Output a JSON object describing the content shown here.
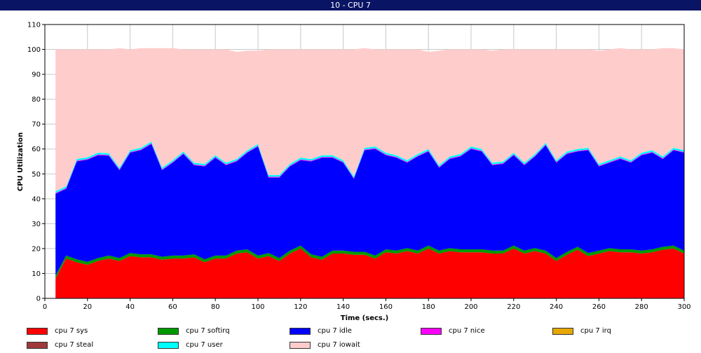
{
  "window": {
    "title": "10 - CPU 7"
  },
  "chart_data": {
    "type": "area",
    "stacked": true,
    "xlabel": "Time (secs.)",
    "ylabel": "CPU Utilization",
    "xlim": [
      0,
      300
    ],
    "ylim": [
      0,
      110
    ],
    "xticks": [
      0,
      20,
      40,
      60,
      80,
      100,
      120,
      140,
      160,
      180,
      200,
      220,
      240,
      260,
      280,
      300
    ],
    "yticks": [
      0,
      10,
      20,
      30,
      40,
      50,
      60,
      70,
      80,
      90,
      100,
      110
    ],
    "grid": true,
    "legend_position": "bottom",
    "x": [
      5,
      10,
      15,
      20,
      25,
      30,
      35,
      40,
      45,
      50,
      55,
      60,
      65,
      70,
      75,
      80,
      85,
      90,
      95,
      100,
      105,
      110,
      115,
      120,
      125,
      130,
      135,
      140,
      145,
      150,
      155,
      160,
      165,
      170,
      175,
      180,
      185,
      190,
      195,
      200,
      205,
      210,
      215,
      220,
      225,
      230,
      235,
      240,
      245,
      250,
      255,
      260,
      265,
      270,
      275,
      280,
      285,
      290,
      295,
      300
    ],
    "series": [
      {
        "name": "cpu 7 sys",
        "color": "#ff0000",
        "values": [
          8,
          16,
          14.5,
          13.5,
          15,
          16,
          15,
          17,
          16.5,
          16.5,
          15.5,
          16,
          16,
          16.5,
          14.5,
          16,
          16,
          18,
          18.5,
          16,
          17,
          15,
          18,
          20,
          16.5,
          15.5,
          18,
          18,
          17.5,
          17.5,
          16,
          18.5,
          18,
          19,
          18,
          20,
          18,
          19,
          18.5,
          18.5,
          18.5,
          18,
          18,
          20,
          18,
          19,
          18,
          15,
          17.5,
          19.5,
          17,
          18,
          19,
          18.5,
          18.5,
          18,
          18.5,
          19.5,
          20,
          18
        ]
      },
      {
        "name": "cpu 7 softirq",
        "color": "#009900",
        "values": [
          1.2,
          1.2,
          1.2,
          1.2,
          1.2,
          1.2,
          1.2,
          1.2,
          1.2,
          1.2,
          1.2,
          1.2,
          1.2,
          1.2,
          1.2,
          1.2,
          1.2,
          1.2,
          1.2,
          1.2,
          1.2,
          1.2,
          1.2,
          1.2,
          1.2,
          1.2,
          1.2,
          1.2,
          1.2,
          1.2,
          1.2,
          1.2,
          1.2,
          1.2,
          1.2,
          1.2,
          1.2,
          1.2,
          1.2,
          1.2,
          1.2,
          1.2,
          1.2,
          1.2,
          1.2,
          1.2,
          1.2,
          1.2,
          1.2,
          1.2,
          1.2,
          1.2,
          1.2,
          1.2,
          1.2,
          1.2,
          1.2,
          1.2,
          1.2,
          1.2
        ]
      },
      {
        "name": "cpu 7 idle",
        "color": "#0000ff",
        "values": [
          32.8,
          26.8,
          39.3,
          41,
          41.3,
          40.1,
          35.3,
          40.3,
          41.8,
          44.3,
          34.8,
          37.3,
          40.8,
          35.8,
          37.3,
          39.3,
          36.3,
          35.8,
          38.8,
          43.8,
          30.3,
          32.3,
          33.8,
          34.3,
          37.3,
          39.8,
          37.3,
          35.3,
          29.3,
          40.8,
          42.8,
          37.8,
          37.3,
          34.3,
          37.8,
          37.8,
          33.3,
          35.8,
          37.3,
          40.3,
          39.3,
          34.3,
          34.8,
          36.3,
          34.3,
          36.8,
          42.3,
          38.3,
          39.3,
          38.3,
          41.3,
          33.8,
          34.3,
          36.3,
          34.8,
          38.3,
          38.8,
          35.3,
          38.3,
          39.3
        ]
      },
      {
        "name": "cpu 7 nice",
        "color": "#ff00ff",
        "values": [
          0.3,
          0.3,
          0.3,
          0.3,
          0.3,
          0.3,
          0.3,
          0.3,
          0.3,
          0.3,
          0.3,
          0.3,
          0.3,
          0.3,
          0.3,
          0.3,
          0.3,
          0.3,
          0.3,
          0.3,
          0.3,
          0.3,
          0.3,
          0.3,
          0.3,
          0.3,
          0.3,
          0.3,
          0.3,
          0.3,
          0.3,
          0.3,
          0.3,
          0.3,
          0.3,
          0.3,
          0.3,
          0.3,
          0.3,
          0.3,
          0.3,
          0.3,
          0.3,
          0.3,
          0.3,
          0.3,
          0.3,
          0.3,
          0.3,
          0.3,
          0.3,
          0.3,
          0.3,
          0.3,
          0.3,
          0.3,
          0.3,
          0.3,
          0.3,
          0.3
        ]
      },
      {
        "name": "cpu 7 irq",
        "color": "#e6a800",
        "values": [
          0,
          0,
          0,
          0,
          0,
          0,
          0,
          0,
          0,
          0,
          0,
          0,
          0,
          0,
          0,
          0,
          0,
          0,
          0,
          0,
          0,
          0,
          0,
          0,
          0,
          0,
          0,
          0,
          0,
          0,
          0,
          0,
          0,
          0,
          0,
          0,
          0,
          0,
          0,
          0,
          0,
          0,
          0,
          0,
          0,
          0,
          0,
          0,
          0,
          0,
          0,
          0,
          0,
          0,
          0,
          0,
          0,
          0,
          0,
          0
        ]
      },
      {
        "name": "cpu 7 steal",
        "color": "#a0393c",
        "values": [
          0,
          0,
          0,
          0,
          0,
          0,
          0,
          0,
          0,
          0,
          0,
          0,
          0,
          0,
          0,
          0,
          0,
          0,
          0,
          0,
          0,
          0,
          0,
          0,
          0,
          0,
          0,
          0,
          0,
          0,
          0,
          0,
          0,
          0,
          0,
          0,
          0,
          0,
          0,
          0,
          0,
          0,
          0,
          0,
          0,
          0,
          0,
          0,
          0,
          0,
          0,
          0,
          0,
          0,
          0,
          0,
          0,
          0,
          0,
          0
        ]
      },
      {
        "name": "cpu 7 user",
        "color": "#00ffff",
        "values": [
          0.7,
          0.7,
          0.7,
          0.7,
          0.7,
          0.7,
          0.7,
          0.7,
          0.7,
          0.7,
          0.7,
          0.7,
          0.7,
          0.7,
          0.7,
          0.7,
          0.7,
          0.7,
          0.7,
          0.7,
          0.7,
          0.7,
          0.7,
          0.7,
          0.7,
          0.7,
          0.7,
          0.7,
          0.7,
          0.7,
          0.7,
          0.7,
          0.7,
          0.7,
          0.7,
          0.7,
          0.7,
          0.7,
          0.7,
          0.7,
          0.7,
          0.7,
          0.7,
          0.7,
          0.7,
          0.7,
          0.7,
          0.7,
          0.7,
          0.7,
          0.7,
          0.7,
          0.7,
          0.7,
          0.7,
          0.7,
          0.7,
          0.7,
          0.7,
          0.7
        ]
      },
      {
        "name": "cpu 7 iowait",
        "color": "#ffcccc",
        "values": [
          57,
          55,
          44,
          43.3,
          41.5,
          41.7,
          48,
          40.5,
          40,
          37.5,
          48,
          45,
          41,
          45.5,
          46,
          42.5,
          45.5,
          43,
          40,
          37.5,
          50.5,
          50.5,
          46,
          43.5,
          44,
          42.5,
          42.5,
          44.5,
          51,
          40,
          39,
          41.5,
          42.5,
          44.5,
          42,
          39,
          46,
          43,
          42,
          39,
          40,
          45,
          45,
          41.5,
          45.5,
          42,
          37.5,
          44.5,
          41,
          40,
          39.5,
          45.5,
          44.5,
          43.5,
          44.5,
          41.5,
          40.5,
          43.5,
          40,
          40.5
        ]
      }
    ]
  }
}
